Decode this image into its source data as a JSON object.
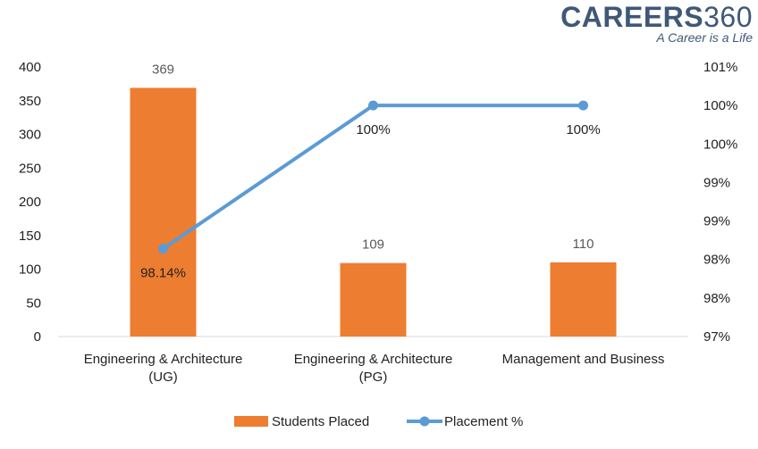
{
  "brand": {
    "name": "CAREERS",
    "number": "360",
    "tagline": "A Career is a Life"
  },
  "colors": {
    "bar": "#ed7d31",
    "line": "#5b9bd5",
    "brand": "#3f5878"
  },
  "chart_data": {
    "type": "bar",
    "categories": [
      [
        "Engineering & Architecture",
        "(UG)"
      ],
      [
        "Engineering & Architecture",
        "(PG)"
      ],
      [
        "Management and Business"
      ]
    ],
    "series": [
      {
        "name": "Students Placed",
        "type": "bar",
        "axis": "left",
        "values": [
          369,
          109,
          110
        ],
        "labels": [
          "369",
          "109",
          "110"
        ]
      },
      {
        "name": "Placement %",
        "type": "line",
        "axis": "right",
        "values": [
          98.14,
          100,
          100
        ],
        "labels": [
          "98.14%",
          "100%",
          "100%"
        ]
      }
    ],
    "y_left": {
      "min": 0,
      "max": 400,
      "ticks": [
        "0",
        "50",
        "100",
        "150",
        "200",
        "250",
        "300",
        "350",
        "400"
      ]
    },
    "y_right": {
      "min": 97,
      "max": 100.5,
      "ticks": [
        "97%",
        "98%",
        "98%",
        "99%",
        "99%",
        "100%",
        "100%",
        "101%"
      ]
    },
    "legend": {
      "position": "bottom",
      "entries": [
        "Students Placed",
        "Placement %"
      ]
    },
    "grid": false
  }
}
